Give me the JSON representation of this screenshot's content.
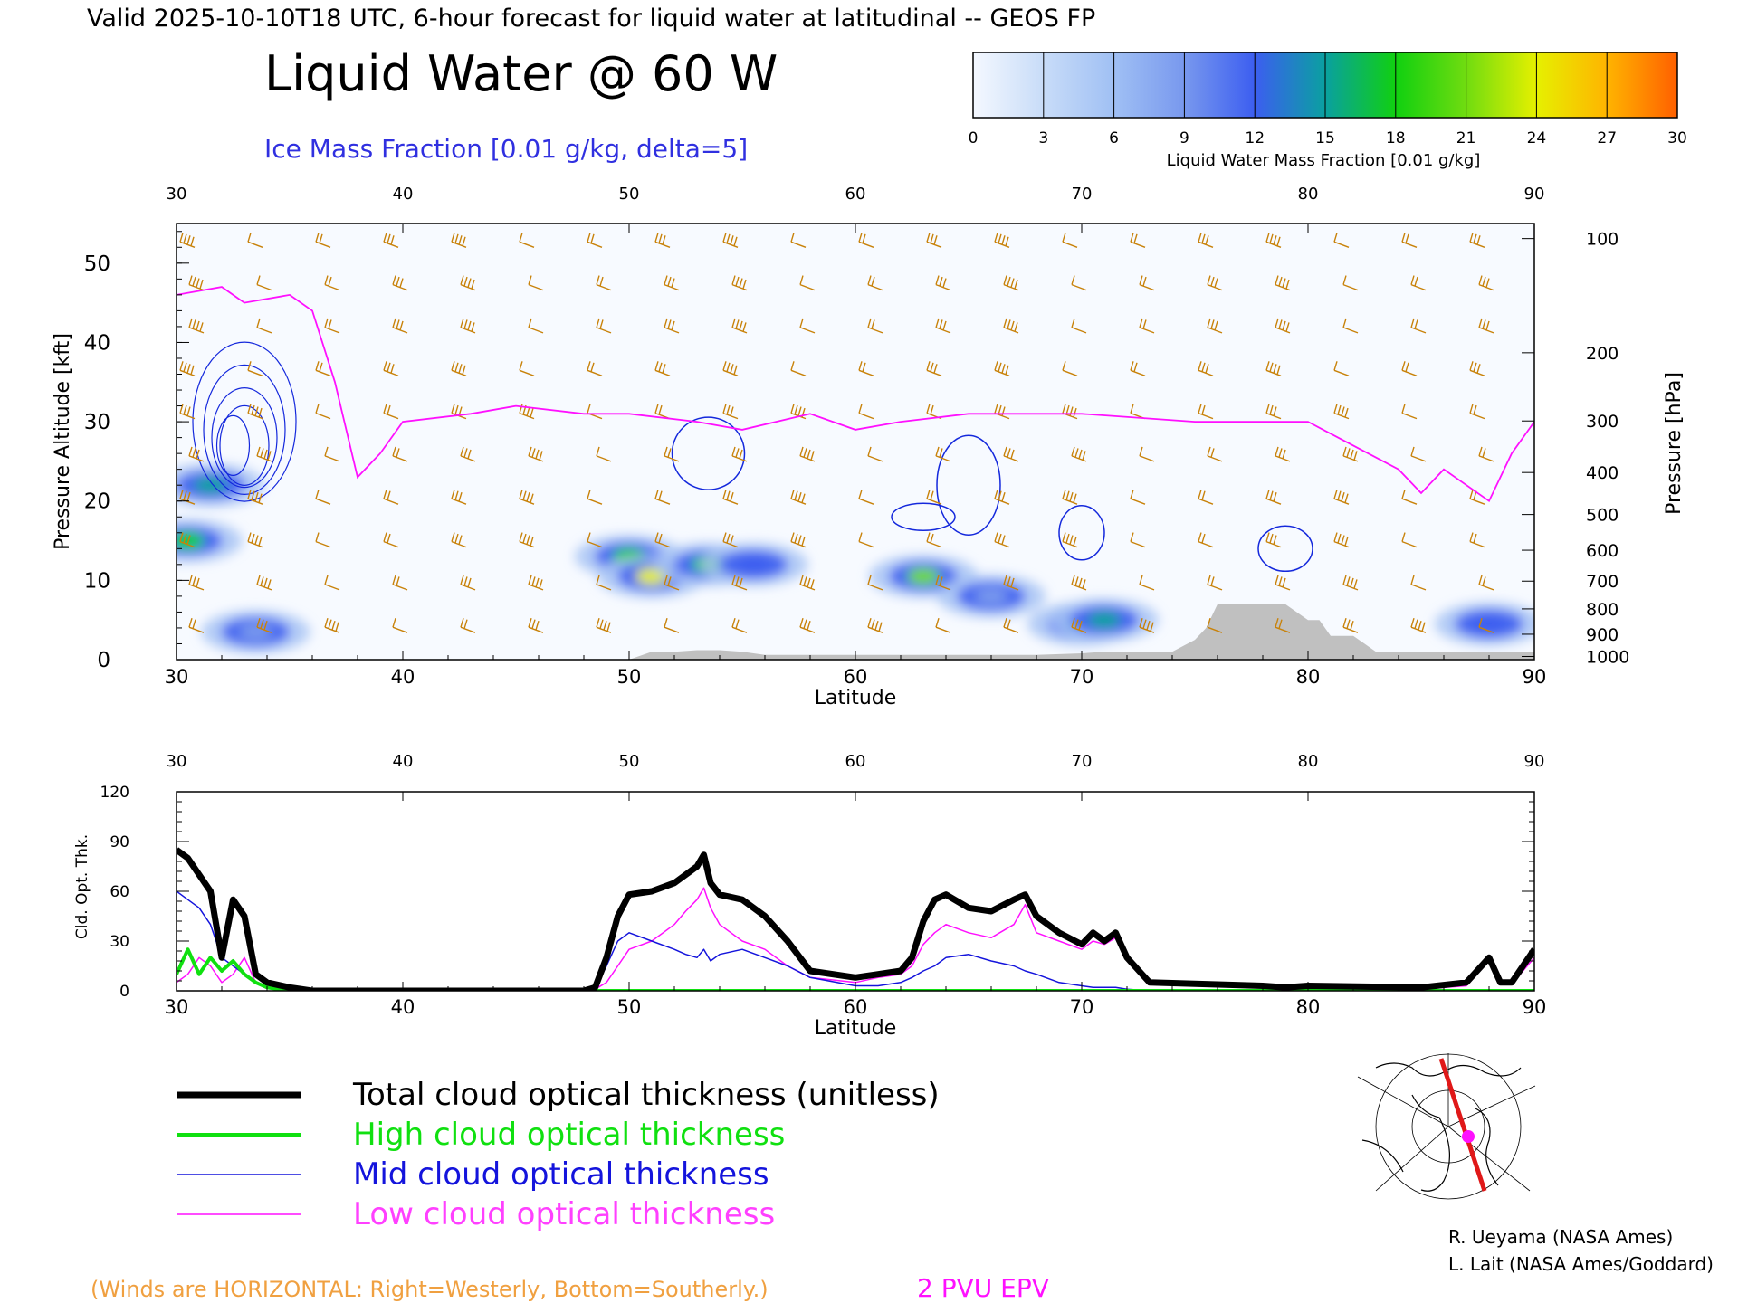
{
  "header": {
    "valid_line": "Valid 2025-10-10T18 UTC, 6-hour forecast for liquid water at latitudinal -- GEOS FP",
    "title": "Liquid Water @ 60 W",
    "subtitle": "Ice Mass Fraction [0.01 g/kg, delta=5]"
  },
  "colorbar": {
    "label": "Liquid Water Mass Fraction [0.01 g/kg]",
    "ticks": [
      "0",
      "3",
      "6",
      "9",
      "12",
      "15",
      "18",
      "21",
      "24",
      "27",
      "30"
    ],
    "colors": [
      "#f4f8ff",
      "#c8dcf8",
      "#a0c0f4",
      "#7898ee",
      "#3c5ef0",
      "#0aa0a0",
      "#10d010",
      "#70dc10",
      "#e6f000",
      "#ffb400",
      "#ff6000"
    ]
  },
  "chart_data": [
    {
      "type": "heatmap",
      "title": "Liquid Water @ 60 W",
      "xlabel": "Latitude",
      "ylabel": "Pressure Altitude [kft]",
      "ylabel_right": "Pressure [hPa]",
      "xlim": [
        30,
        90
      ],
      "ylim": [
        0,
        55
      ],
      "x_ticks": [
        "30",
        "40",
        "50",
        "60",
        "70",
        "80",
        "90"
      ],
      "y_ticks": [
        "0",
        "10",
        "20",
        "30",
        "40",
        "50"
      ],
      "pressure_ticks": [
        "100",
        "200",
        "300",
        "400",
        "500",
        "600",
        "700",
        "800",
        "900",
        "1000"
      ],
      "pressure_tick_kft": [
        53.1,
        38.7,
        30.1,
        23.6,
        18.3,
        13.8,
        9.9,
        6.4,
        3.2,
        0.4
      ],
      "liquid_water_blobs": [
        {
          "lat": 30.5,
          "alt_kft": 15,
          "value": 18
        },
        {
          "lat": 31.5,
          "alt_kft": 22,
          "value": 14
        },
        {
          "lat": 33.5,
          "alt_kft": 3.5,
          "value": 9
        },
        {
          "lat": 50.0,
          "alt_kft": 13,
          "value": 18
        },
        {
          "lat": 51.0,
          "alt_kft": 10.5,
          "value": 24
        },
        {
          "lat": 53.5,
          "alt_kft": 12,
          "value": 17
        },
        {
          "lat": 55.5,
          "alt_kft": 12,
          "value": 12
        },
        {
          "lat": 63.0,
          "alt_kft": 10.5,
          "value": 21
        },
        {
          "lat": 66.0,
          "alt_kft": 8,
          "value": 10
        },
        {
          "lat": 70.0,
          "alt_kft": 4.5,
          "value": 15
        },
        {
          "lat": 71.0,
          "alt_kft": 5,
          "value": 16
        },
        {
          "lat": 88.0,
          "alt_kft": 4.5,
          "value": 13
        }
      ],
      "pvu2_epv_line": {
        "lat": [
          30,
          32,
          33,
          35,
          36,
          37,
          38,
          39,
          40,
          43,
          45,
          48,
          50,
          53,
          55,
          58,
          60,
          62,
          65,
          68,
          70,
          75,
          78,
          80,
          82,
          84,
          85,
          86,
          88,
          89,
          90
        ],
        "alt_kft": [
          46,
          47,
          45,
          46,
          44,
          35,
          23,
          26,
          30,
          31,
          32,
          31,
          31,
          30,
          29,
          31,
          29,
          30,
          31,
          31,
          31,
          30,
          30,
          30,
          27,
          24,
          21,
          24,
          20,
          26,
          30
        ]
      },
      "terrain_kft": {
        "lat": [
          50,
          50.5,
          51,
          52,
          53,
          54,
          55,
          56,
          57,
          58,
          60,
          62,
          65,
          68,
          70,
          71,
          72,
          73,
          74,
          75,
          75.5,
          76,
          77,
          78,
          79,
          80,
          80.5,
          81,
          82,
          83,
          90
        ],
        "alt_kft": [
          0,
          0.5,
          1,
          1,
          1.2,
          1.2,
          1,
          0.6,
          0.6,
          0.6,
          0.6,
          0.6,
          0.6,
          0.6,
          0.8,
          1,
          1,
          1,
          1,
          2.5,
          4,
          7,
          7,
          7,
          7,
          5,
          5,
          3,
          3,
          1,
          1
        ]
      }
    },
    {
      "type": "line",
      "xlabel": "Latitude",
      "ylabel": "Cld. Opt. Thk.",
      "xlim": [
        30,
        90
      ],
      "ylim": [
        0,
        120
      ],
      "x_ticks": [
        "30",
        "40",
        "50",
        "60",
        "70",
        "80",
        "90"
      ],
      "y_ticks": [
        "0",
        "30",
        "60",
        "90",
        "120"
      ],
      "x": [
        30,
        30.5,
        31,
        31.5,
        32,
        32.5,
        33,
        33.5,
        34,
        35,
        36,
        40,
        45,
        48,
        48.5,
        49,
        49.5,
        50,
        51,
        52,
        52.5,
        53,
        53.3,
        53.6,
        54,
        55,
        56,
        57,
        58,
        60,
        61,
        62,
        62.5,
        63,
        63.5,
        64,
        65,
        66,
        67,
        67.5,
        68,
        69,
        70,
        70.5,
        71,
        71.5,
        72,
        73,
        78,
        79,
        80,
        85,
        87,
        88,
        88.5,
        89,
        90
      ],
      "series": [
        {
          "name": "Total cloud optical thickness (unitless)",
          "color": "#000000",
          "width": 7,
          "values": [
            85,
            80,
            70,
            60,
            20,
            55,
            45,
            10,
            5,
            2,
            0,
            0,
            0,
            0,
            2,
            20,
            45,
            58,
            60,
            65,
            70,
            75,
            82,
            65,
            58,
            55,
            45,
            30,
            12,
            8,
            10,
            12,
            20,
            42,
            55,
            58,
            50,
            48,
            55,
            58,
            45,
            35,
            28,
            35,
            30,
            35,
            20,
            5,
            3,
            2,
            3,
            2,
            5,
            20,
            5,
            5,
            25
          ]
        },
        {
          "name": "High cloud optical thickness",
          "color": "#10e010",
          "width": 4,
          "values": [
            10,
            25,
            10,
            20,
            12,
            18,
            10,
            5,
            2,
            0,
            0,
            0,
            0,
            0,
            0,
            0,
            0,
            0,
            0,
            0,
            0,
            0,
            0,
            0,
            0,
            0,
            0,
            0,
            0,
            0,
            0,
            0,
            0,
            0,
            0,
            0,
            0,
            0,
            0,
            0,
            0,
            0,
            0,
            0,
            0,
            0,
            0,
            0,
            0,
            0,
            0,
            0,
            0,
            0,
            0,
            0,
            0
          ]
        },
        {
          "name": "Mid cloud optical thickness",
          "color": "#1414dc",
          "width": 1.5,
          "values": [
            60,
            55,
            50,
            40,
            20,
            15,
            10,
            5,
            2,
            0,
            0,
            0,
            0,
            0,
            1,
            15,
            30,
            35,
            30,
            25,
            22,
            20,
            25,
            18,
            22,
            25,
            20,
            15,
            8,
            3,
            3,
            5,
            8,
            12,
            15,
            20,
            22,
            18,
            15,
            12,
            10,
            5,
            3,
            2,
            2,
            2,
            1,
            0,
            0,
            0,
            0,
            0,
            0,
            0,
            0,
            0,
            0
          ]
        },
        {
          "name": "Low cloud optical thickness",
          "color": "#ff10ff",
          "width": 1.5,
          "values": [
            5,
            10,
            20,
            15,
            5,
            10,
            20,
            5,
            2,
            1,
            0,
            0,
            0,
            0,
            1,
            5,
            15,
            25,
            30,
            40,
            48,
            55,
            62,
            50,
            40,
            30,
            25,
            15,
            8,
            5,
            8,
            10,
            15,
            28,
            35,
            40,
            35,
            32,
            40,
            52,
            35,
            30,
            25,
            30,
            28,
            32,
            18,
            4,
            2,
            1,
            2,
            1,
            3,
            18,
            4,
            4,
            20
          ]
        }
      ]
    }
  ],
  "legend": [
    {
      "label": "Total cloud optical thickness (unitless)",
      "color": "#000000"
    },
    {
      "label": "High cloud optical thickness",
      "color": "#10e010"
    },
    {
      "label": "Mid cloud optical thickness",
      "color": "#1414dc"
    },
    {
      "label": "Low cloud optical thickness",
      "color": "#ff10ff"
    }
  ],
  "footer": {
    "winds_note": "(Winds are HORIZONTAL: Right=Westerly, Bottom=Southerly.)",
    "epv_label": "2 PVU EPV",
    "credit1": "R. Ueyama (NASA Ames)",
    "credit2": "L. Lait (NASA Ames/Goddard)"
  },
  "colors": {
    "wind_barb": "#c8820a",
    "epv": "#ff10ff",
    "ice_contour": "#1428dc",
    "terrain": "#c0c0c0"
  }
}
